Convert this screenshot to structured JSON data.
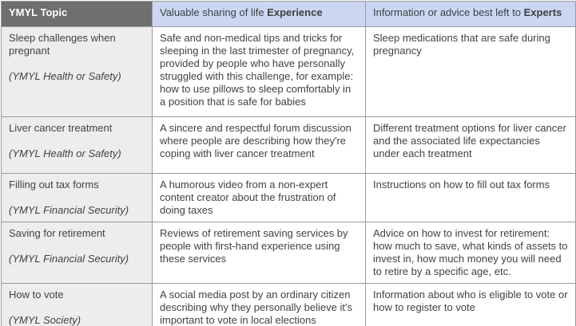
{
  "colors": {
    "header_dark_bg": "#6f6f6f",
    "header_blue_bg": "#cbd7f1",
    "topic_column_bg": "#ededed",
    "border": "#9b9b9b",
    "body_text": "#3f4247",
    "header_dark_text": "#ffffff"
  },
  "table": {
    "header": {
      "topic": "YMYL Topic",
      "experience_prefix": "Valuable sharing of life ",
      "experience_bold": "Experience",
      "experts_prefix": "Information or advice best left to ",
      "experts_bold": "Experts"
    },
    "rows": [
      {
        "topic": "Sleep challenges when pregnant",
        "category": "(YMYL Health or Safety)",
        "experience": "Safe and non-medical tips and tricks for sleeping in the last trimester of pregnancy, provided by people who have personally struggled with this challenge, for example: how to use pillows to sleep comfortably in a position that is safe for babies",
        "experts": "Sleep medications that are safe during pregnancy"
      },
      {
        "topic": "Liver cancer treatment",
        "category": "(YMYL Health or Safety)",
        "experience": "A sincere and respectful forum discussion where people are describing how they're coping with liver cancer treatment",
        "experts": "Different treatment options for liver cancer and the associated life expectancies under each treatment"
      },
      {
        "topic": "Filling out tax forms",
        "category": "(YMYL Financial Security)",
        "experience": "A humorous video from a non-expert content creator about the frustration of doing taxes",
        "experts": "Instructions on how to fill out tax forms"
      },
      {
        "topic": "Saving for retirement",
        "category": "(YMYL Financial Security)",
        "experience": "Reviews of retirement saving services by people with first-hand experience using these services",
        "experts": "Advice on how to invest for retirement: how much to save, what kinds of assets to invest in, how much money you will need to retire by a specific age, etc."
      },
      {
        "topic": "How to vote",
        "category": "(YMYL Society)",
        "experience": "A social media post by an ordinary citizen describing why they personally believe it's important to vote in local elections",
        "experts": "Information about who is eligible to vote or how to register to vote"
      }
    ]
  }
}
